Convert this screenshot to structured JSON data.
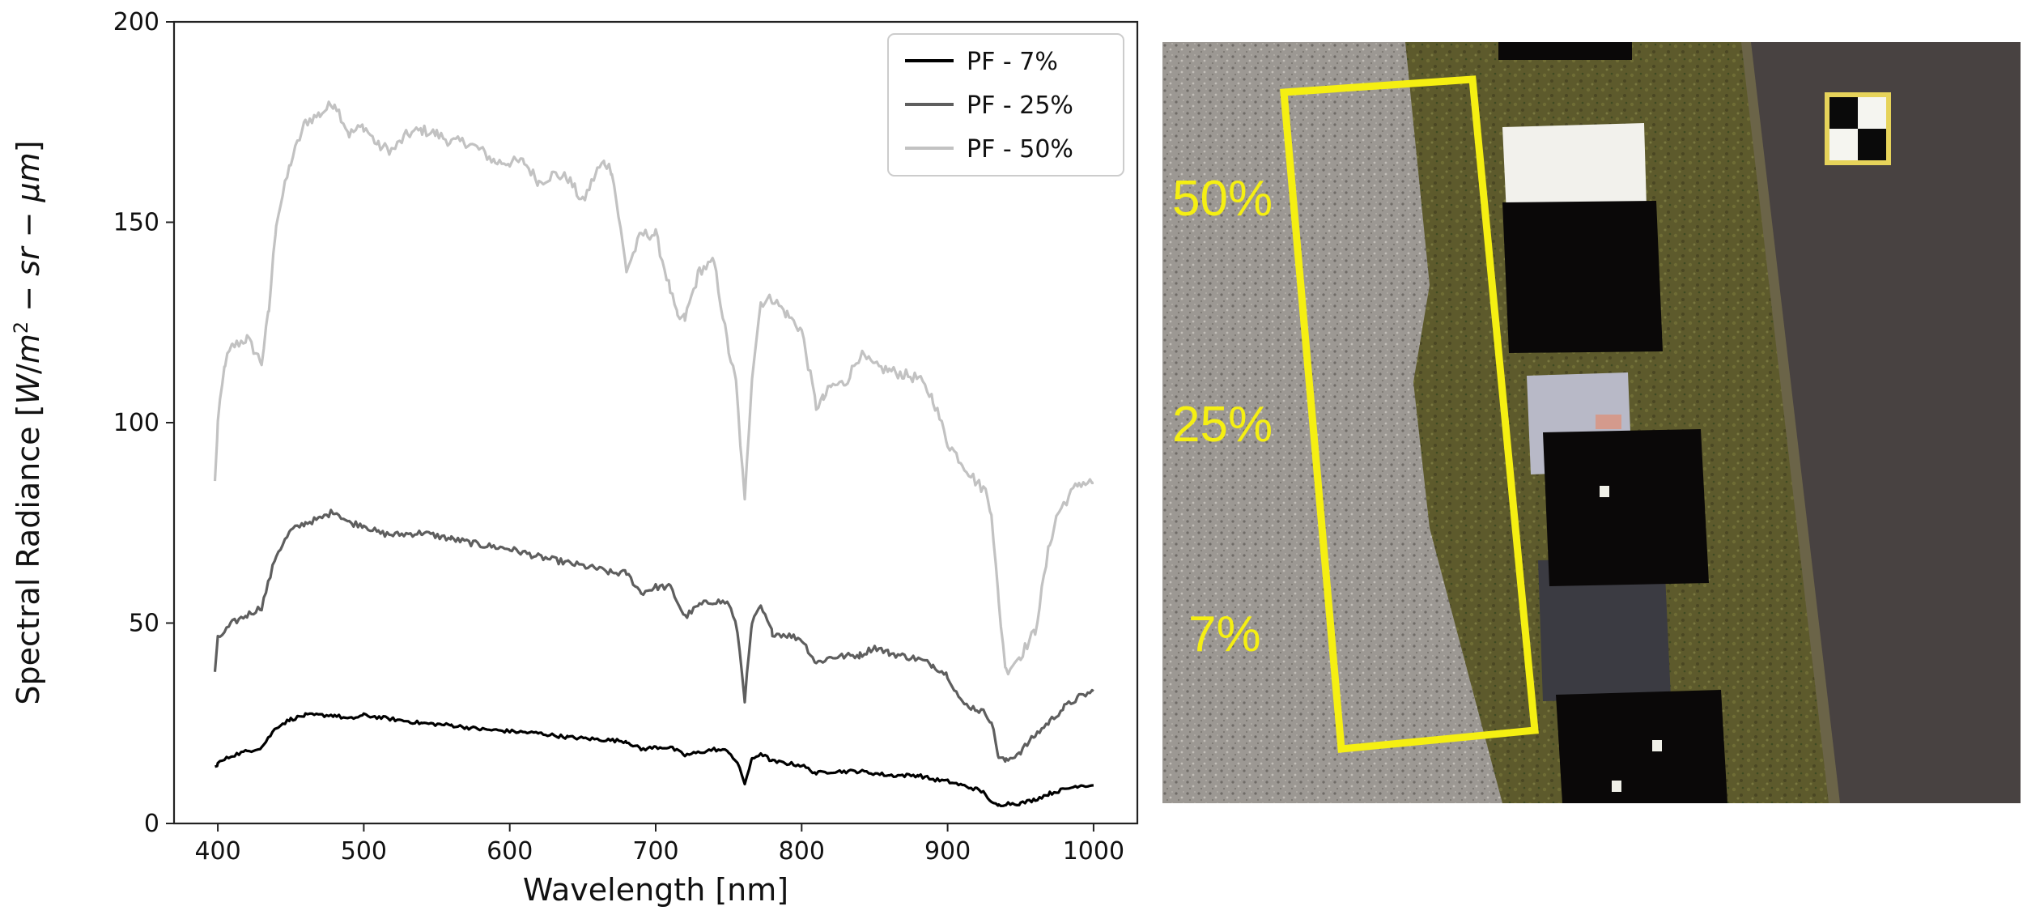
{
  "chart_data": {
    "type": "line",
    "title": "",
    "xlabel": "Wavelength [nm]",
    "ylabel": "Spectral Radiance [W/m² − sr − μm]",
    "ylabel_parts": {
      "prefix": "Spectral Radiance [",
      "W": "W",
      "m": "m",
      "sup": "2",
      "minus1": " − ",
      "sr": "sr",
      "minus2": " − ",
      "mu": "μm",
      "suffix": "]"
    },
    "xlim": [
      370,
      1030
    ],
    "ylim": [
      0,
      200
    ],
    "xticks": [
      "400",
      "500",
      "600",
      "700",
      "800",
      "900",
      "1000"
    ],
    "yticks": [
      "0",
      "50",
      "100",
      "150",
      "200"
    ],
    "grid": false,
    "legend_position": "top-right",
    "series": [
      {
        "name": "PF - 7%",
        "color": "#000000",
        "x": [
          398,
          400,
          410,
          420,
          430,
          440,
          450,
          460,
          470,
          480,
          490,
          500,
          520,
          540,
          560,
          580,
          600,
          620,
          640,
          660,
          680,
          690,
          700,
          710,
          720,
          740,
          750,
          756,
          761,
          766,
          772,
          780,
          790,
          800,
          810,
          820,
          840,
          860,
          880,
          890,
          900,
          910,
          920,
          926,
          930,
          935,
          940,
          950,
          960,
          970,
          980,
          990,
          1000
        ],
        "y": [
          14,
          15,
          17,
          18,
          19,
          24,
          26,
          27,
          27,
          27,
          26,
          27,
          26,
          25,
          24.5,
          23.5,
          23,
          22.5,
          21.5,
          21,
          20.5,
          18.5,
          19,
          19,
          17,
          18.5,
          18,
          15,
          10,
          16,
          17.5,
          15.5,
          15,
          14.5,
          12.5,
          13,
          13,
          12,
          12,
          11,
          10.5,
          9.5,
          8.5,
          7.5,
          5,
          4.5,
          5,
          5,
          6,
          7.5,
          8.5,
          9.5,
          9.5
        ]
      },
      {
        "name": "PF - 25%",
        "color": "#5e5e5e",
        "x": [
          398,
          400,
          410,
          420,
          430,
          440,
          450,
          460,
          470,
          480,
          490,
          500,
          510,
          520,
          540,
          560,
          580,
          600,
          620,
          640,
          660,
          670,
          680,
          690,
          700,
          710,
          720,
          730,
          740,
          750,
          756,
          761,
          766,
          772,
          780,
          790,
          800,
          810,
          820,
          840,
          850,
          860,
          880,
          890,
          900,
          910,
          920,
          926,
          930,
          935,
          940,
          950,
          960,
          970,
          980,
          990,
          1000
        ],
        "y": [
          38,
          46,
          50,
          52,
          54,
          67,
          73,
          75,
          76,
          78,
          75,
          74.5,
          72.5,
          72,
          72.5,
          71,
          69.5,
          68.5,
          66.5,
          65,
          63.5,
          62.5,
          62.5,
          57.5,
          59,
          59,
          51.5,
          54.5,
          55.5,
          55,
          48,
          31,
          50,
          54,
          47.5,
          47,
          46,
          40,
          41.5,
          42,
          44,
          42.5,
          41,
          39.5,
          37,
          30,
          28.5,
          27.5,
          25.5,
          16.5,
          15.5,
          18,
          22,
          25.5,
          29,
          31.5,
          33
        ]
      },
      {
        "name": "PF - 50%",
        "color": "#c2c2c2",
        "x": [
          398,
          400,
          405,
          410,
          420,
          430,
          435,
          440,
          450,
          460,
          470,
          480,
          490,
          500,
          510,
          520,
          530,
          540,
          550,
          560,
          570,
          580,
          590,
          600,
          610,
          620,
          630,
          640,
          650,
          660,
          665,
          670,
          680,
          690,
          700,
          710,
          715,
          720,
          730,
          740,
          750,
          755,
          761,
          766,
          772,
          780,
          790,
          800,
          810,
          815,
          820,
          830,
          840,
          850,
          860,
          870,
          880,
          890,
          900,
          910,
          920,
          926,
          930,
          935,
          940,
          950,
          960,
          970,
          975,
          980,
          990,
          1000
        ],
        "y": [
          85,
          100,
          115,
          119,
          121,
          115,
          128,
          150,
          165,
          175,
          177,
          180,
          172,
          174,
          169,
          168,
          172,
          173,
          172,
          170,
          170,
          168,
          165,
          165,
          165,
          160,
          162,
          161,
          155,
          163,
          165,
          163,
          138,
          147,
          147,
          133,
          126,
          126,
          138,
          140,
          118,
          110,
          80,
          112,
          130,
          131,
          127,
          123,
          104,
          106,
          109,
          110,
          117,
          114,
          113,
          112,
          111,
          106,
          95,
          90,
          85,
          83,
          78,
          55,
          38,
          42,
          48,
          70,
          77,
          80,
          85,
          85
        ]
      }
    ]
  },
  "photo_panel": {
    "labels": [
      "50%",
      "25%",
      "7%"
    ],
    "highlight_color": "#f5ef12"
  }
}
